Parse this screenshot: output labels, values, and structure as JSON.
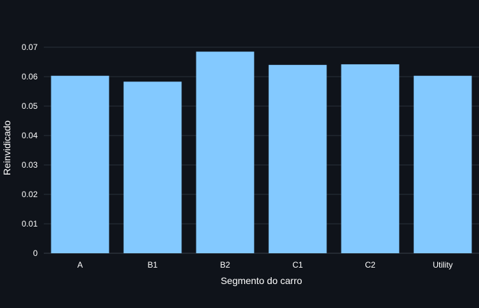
{
  "colors": {
    "background": "#0f131a",
    "bar": "#83c9ff",
    "grid": "#2a3039",
    "text": "#ffffff"
  },
  "chart_data": {
    "type": "bar",
    "title": "",
    "xlabel": "Segmento do carro",
    "ylabel": "Reinvidicado",
    "categories": [
      "A",
      "B1",
      "B2",
      "C1",
      "C2",
      "Utility"
    ],
    "values": [
      0.0603,
      0.0583,
      0.0685,
      0.064,
      0.0642,
      0.0603
    ],
    "ylim": [
      0,
      0.0745
    ],
    "yticks": [
      0,
      0.01,
      0.02,
      0.03,
      0.04,
      0.05,
      0.06,
      0.07
    ],
    "ytick_labels": [
      "0",
      "0.01",
      "0.02",
      "0.03",
      "0.04",
      "0.05",
      "0.06",
      "0.07"
    ],
    "grid": true,
    "legend": "none"
  }
}
